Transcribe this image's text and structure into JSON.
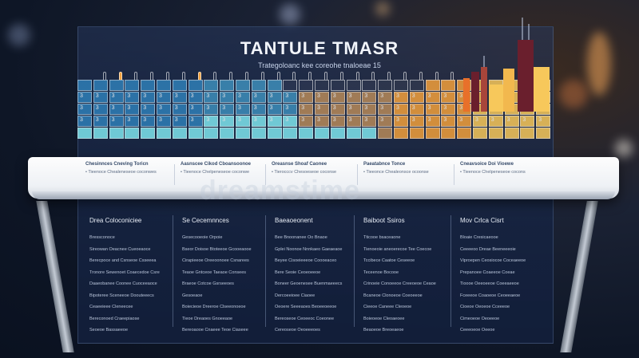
{
  "header": {
    "title": "TANTULE TMASR",
    "subtitle": "Trategoloanc kee coreohe tnaloeae 15"
  },
  "watermark": "dreamstime",
  "grid": {
    "rows": 5,
    "cols": 30,
    "cell_label": "3",
    "colors": {
      "blue": "#2f7fb8",
      "cyan": "#7fe6ef",
      "tan": "#b78a5a",
      "orange": "#f2a03c",
      "yellow": "#f7c85b",
      "dark_red": "#6a1f2d",
      "bar_orange": "#e8702a"
    }
  },
  "captions": [
    {
      "heading": "Chesinnces Cneving Toricn",
      "line": "Tieenoce Chealeneseoe coconwes"
    },
    {
      "heading": "Aasnscee Cikod Cboansoonoe",
      "line": "Tieenoce Chelpeneseoe coconwe"
    },
    {
      "heading": "Oreasnse Shoaf Caonee",
      "line": "Tierocccv Chesoeseoe coconse"
    },
    {
      "heading": "Paeatabnce Tonce",
      "line": "Tieeonce Chealeonsce ocoonse"
    },
    {
      "heading": "Cneavsoice Doi Vioewe",
      "line": "Tieenoce Chelpeneseoe cocons"
    }
  ],
  "columns": [
    {
      "heading": "Drea Coloconiciee",
      "items": [
        "Bressconoce",
        "Sireowan Oeacnee Cueoeaoce",
        "Berecpoce and Csnseoe Csseeea",
        "Tronore Sewenoet Coaecedoe Csre",
        "Daaeobanee Coonee Cuoceeaoce",
        "Bipoteree Sceneeoe Doouteeecs",
        "Ceaeeieee Cleneecee",
        "Bereconoed Craeepiaose",
        "Seoeoe Bassaeeoe"
      ]
    },
    {
      "heading": "Se Cecemnnces",
      "items": [
        "Gesecooeoie Orpoie",
        "Bseor Doisoe Btoteeoe Gcooeaooe",
        "Cirapieeoe Oreeoonoee Csnarees",
        "Teaoe Gntceoe Taeaoe Consees",
        "Braeoe Cotcoe Gsrseeoes",
        "Gesoeaoe",
        "Boiecieoe Dreeroe Clseeonoeoe",
        "Tieoe Dreaoes Gnoeeaoe",
        "Bereoaooe Cnaeee Teoe Ciaseee"
      ]
    },
    {
      "heading": "Baeaoeonent",
      "items": [
        "Bee Bnoonanee Oo Bnaoe",
        "Gplei Noonoe Nnnkaeo Gaeaeaoe",
        "Beyee Cisoeieeeoe Coooeaceo",
        "Bere Seoie Ceoeoeeoe",
        "Boneer Geoenesee Buenmaeeecs",
        "Dercoeeioee Ciaoee",
        "Oeoere Seeeaoes Beoeeoeeoe",
        "Bereoseoe Ceoeeoc Coeonee",
        "Cereoseoe Oeoeeeoes"
      ]
    },
    {
      "heading": "Baiboot Ssiros",
      "items": [
        "Tticooe bsaceaone",
        "Tienoeoie aneoerecoe Tee Coecoe",
        "Tccibece Caatoe Ceseeoe",
        "Teceenoe Bocooe",
        "Crinoeie Conoeeoe Creeoeoe Ceaoe",
        "Bcaneoe Clonoeoe Coeoeeoe",
        "Cieeoe Caneee Cleoeoe",
        "Boieoeoe Cleoaeoee",
        "Beaoeoe Breoeaeoe"
      ]
    },
    {
      "heading": "Mov Crlca Cisrt",
      "items": [
        "Bloaie Cresicaeooe",
        "Ceeeeoo Dreae Beeneeeoie",
        "Viproepen Ceosiocoe Coceaeeoe",
        "Prepanoee Coaeeoe Coeae",
        "Tioooe Oeeoeeoe Coeeaeeoe",
        "Fceeeoe Coaoeoe Ceoeeaeoe",
        "Cioeoe Oeoeoe Cceeeoe",
        "Cimeoeoe Oeoeeoe",
        "Ceeeoeoe Oeeoe"
      ]
    }
  ]
}
